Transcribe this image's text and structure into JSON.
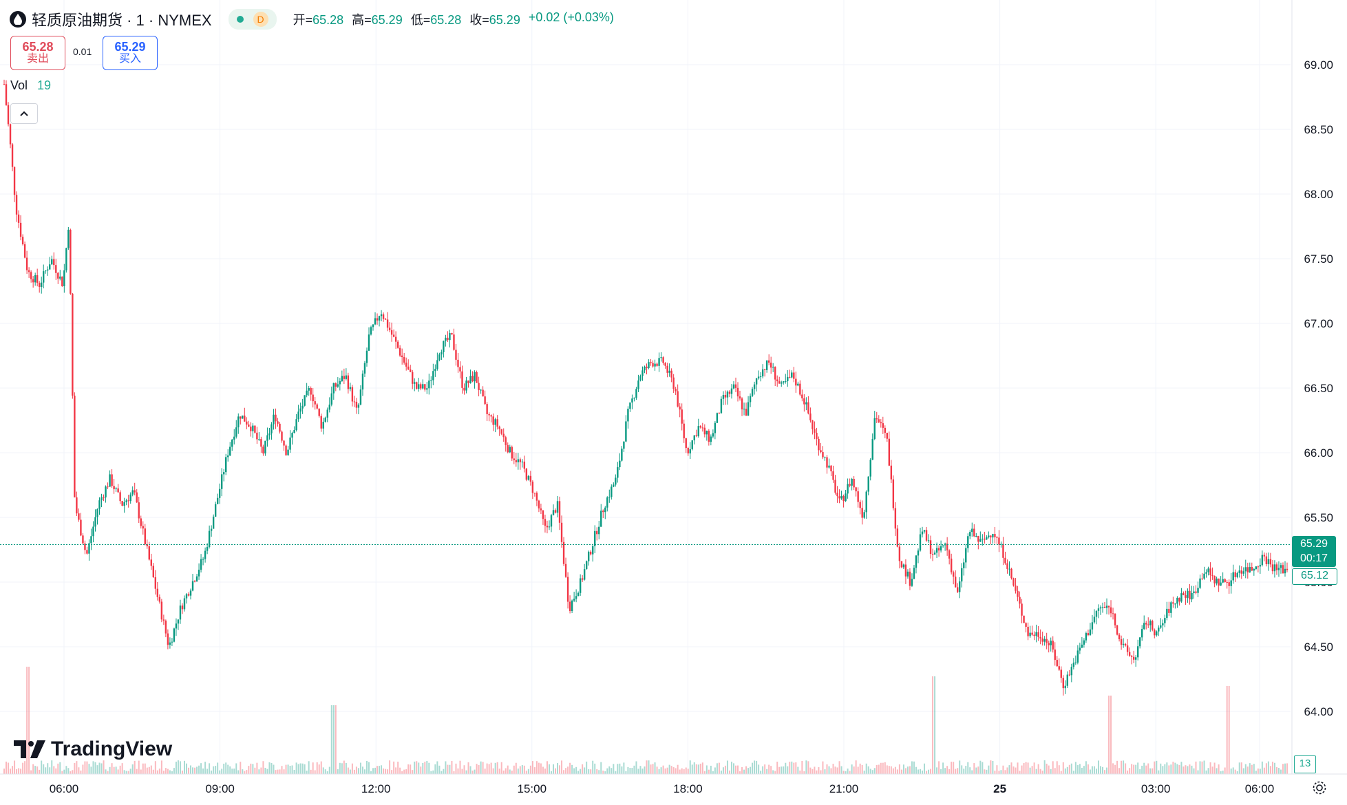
{
  "header": {
    "title": "轻质原油期货 · 1 · NYMEX",
    "interval_badge": "D",
    "ohlc": [
      {
        "label": "开=",
        "value": "65.28"
      },
      {
        "label": "高=",
        "value": "65.29"
      },
      {
        "label": "低=",
        "value": "65.28"
      },
      {
        "label": "收=",
        "value": "65.29"
      }
    ],
    "change": "+0.02 (+0.03%)"
  },
  "trade": {
    "sell_price": "65.28",
    "sell_label": "卖出",
    "spread": "0.01",
    "buy_price": "65.29",
    "buy_label": "买入"
  },
  "volume": {
    "label": "Vol",
    "value": "19",
    "axis_tag": "13"
  },
  "price_tags": {
    "last": "65.29",
    "countdown": "00:17",
    "prev": "65.12"
  },
  "logo_text": "TradingView",
  "colors": {
    "up": "#089981",
    "down": "#f23645",
    "grid": "#f0f3fa",
    "last_line": "#089981"
  },
  "chart_data": {
    "type": "candlestick",
    "y_axis_ticks": [
      "69.00",
      "68.50",
      "68.00",
      "67.50",
      "67.00",
      "66.50",
      "66.00",
      "65.50",
      "65.00",
      "64.50",
      "64.00"
    ],
    "ylim": [
      63.0,
      69.5
    ],
    "x_axis_ticks": [
      "06:00",
      "09:00",
      "12:00",
      "15:00",
      "18:00",
      "21:00",
      "25",
      "03:00",
      "06:00"
    ],
    "price_path": [
      [
        0,
        68.85
      ],
      [
        0.5,
        68.4
      ],
      [
        1,
        67.9
      ],
      [
        2,
        67.4
      ],
      [
        3,
        67.3
      ],
      [
        4,
        67.5
      ],
      [
        5,
        67.3
      ],
      [
        5.5,
        67.8
      ],
      [
        6,
        65.6
      ],
      [
        7,
        65.2
      ],
      [
        8,
        65.6
      ],
      [
        9,
        65.8
      ],
      [
        10,
        65.6
      ],
      [
        11,
        65.7
      ],
      [
        12,
        65.3
      ],
      [
        13,
        64.9
      ],
      [
        14,
        64.5
      ],
      [
        15,
        64.8
      ],
      [
        16,
        65.0
      ],
      [
        17,
        65.2
      ],
      [
        18,
        65.6
      ],
      [
        19,
        66.0
      ],
      [
        20,
        66.3
      ],
      [
        21,
        66.2
      ],
      [
        22,
        66.0
      ],
      [
        23,
        66.3
      ],
      [
        24,
        66.0
      ],
      [
        25,
        66.3
      ],
      [
        26,
        66.5
      ],
      [
        27,
        66.2
      ],
      [
        28,
        66.5
      ],
      [
        29,
        66.6
      ],
      [
        30,
        66.3
      ],
      [
        31,
        66.9
      ],
      [
        32,
        67.1
      ],
      [
        33,
        66.9
      ],
      [
        34,
        66.7
      ],
      [
        35,
        66.5
      ],
      [
        36,
        66.5
      ],
      [
        37,
        66.8
      ],
      [
        38,
        66.9
      ],
      [
        39,
        66.5
      ],
      [
        40,
        66.6
      ],
      [
        41,
        66.3
      ],
      [
        42,
        66.2
      ],
      [
        43,
        66.0
      ],
      [
        44,
        65.9
      ],
      [
        45,
        65.7
      ],
      [
        46,
        65.4
      ],
      [
        47,
        65.6
      ],
      [
        48,
        64.8
      ],
      [
        49,
        65.0
      ],
      [
        50,
        65.3
      ],
      [
        51,
        65.6
      ],
      [
        52,
        65.8
      ],
      [
        53,
        66.3
      ],
      [
        54,
        66.6
      ],
      [
        55,
        66.7
      ],
      [
        56,
        66.7
      ],
      [
        57,
        66.5
      ],
      [
        58,
        66.0
      ],
      [
        59,
        66.2
      ],
      [
        60,
        66.1
      ],
      [
        61,
        66.4
      ],
      [
        62,
        66.5
      ],
      [
        63,
        66.3
      ],
      [
        64,
        66.6
      ],
      [
        65,
        66.7
      ],
      [
        66,
        66.5
      ],
      [
        67,
        66.6
      ],
      [
        68,
        66.4
      ],
      [
        69,
        66.1
      ],
      [
        70,
        65.9
      ],
      [
        71,
        65.6
      ],
      [
        72,
        65.8
      ],
      [
        73,
        65.5
      ],
      [
        74,
        66.3
      ],
      [
        75,
        66.1
      ],
      [
        76,
        65.2
      ],
      [
        77,
        65.0
      ],
      [
        78,
        65.4
      ],
      [
        79,
        65.2
      ],
      [
        80,
        65.3
      ],
      [
        81,
        64.9
      ],
      [
        82,
        65.4
      ],
      [
        83,
        65.3
      ],
      [
        84,
        65.4
      ],
      [
        85,
        65.2
      ],
      [
        86,
        64.9
      ],
      [
        87,
        64.6
      ],
      [
        88,
        64.6
      ],
      [
        89,
        64.5
      ],
      [
        90,
        64.2
      ],
      [
        91,
        64.4
      ],
      [
        92,
        64.6
      ],
      [
        93,
        64.8
      ],
      [
        94,
        64.8
      ],
      [
        95,
        64.5
      ],
      [
        96,
        64.4
      ],
      [
        97,
        64.7
      ],
      [
        98,
        64.6
      ],
      [
        99,
        64.8
      ],
      [
        100,
        64.9
      ],
      [
        101,
        64.9
      ],
      [
        102,
        65.1
      ],
      [
        103,
        65.0
      ],
      [
        104,
        65.0
      ],
      [
        105,
        65.1
      ],
      [
        106,
        65.1
      ],
      [
        107,
        65.2
      ],
      [
        108,
        65.1
      ],
      [
        109,
        65.1
      ]
    ],
    "volume_spikes": [
      [
        2,
        0.9
      ],
      [
        28,
        0.5
      ],
      [
        79,
        0.8
      ],
      [
        94,
        0.6
      ],
      [
        104,
        0.7
      ]
    ]
  }
}
